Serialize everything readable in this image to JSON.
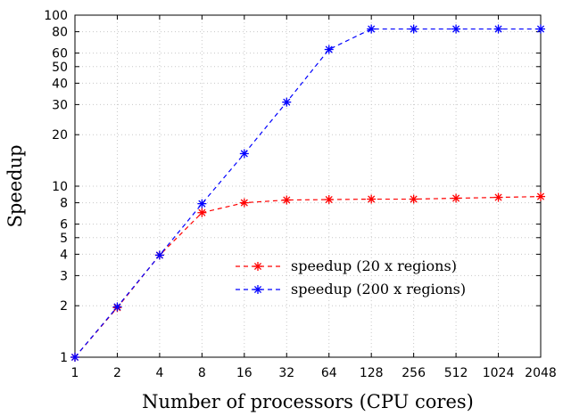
{
  "chart_data": {
    "type": "line",
    "xlabel": "Number of processors (CPU cores)",
    "ylabel": "Speedup",
    "x_scale": "log2",
    "y_scale": "log10",
    "xlim": [
      1,
      2048
    ],
    "ylim": [
      1,
      100
    ],
    "x_ticks": [
      1,
      2,
      4,
      8,
      16,
      32,
      64,
      128,
      256,
      512,
      1024,
      2048
    ],
    "y_ticks": [
      1,
      2,
      3,
      4,
      5,
      6,
      8,
      10,
      20,
      30,
      40,
      50,
      60,
      80,
      100
    ],
    "grid": true,
    "legend_position": "center-right",
    "series": [
      {
        "name": "speedup (20 x regions)",
        "color": "#ff0000",
        "marker": "asterisk",
        "line_style": "dashed",
        "x": [
          1,
          2,
          4,
          8,
          16,
          32,
          64,
          128,
          256,
          512,
          1024,
          2048
        ],
        "y": [
          1,
          1.95,
          3.95,
          7.0,
          8.0,
          8.3,
          8.35,
          8.4,
          8.4,
          8.5,
          8.6,
          8.7
        ]
      },
      {
        "name": "speedup (200 x regions)",
        "color": "#0000ff",
        "marker": "asterisk",
        "line_style": "dashed",
        "x": [
          1,
          2,
          4,
          8,
          16,
          32,
          64,
          128,
          256,
          512,
          1024,
          2048
        ],
        "y": [
          1,
          1.97,
          3.95,
          7.9,
          15.5,
          31,
          63,
          83,
          83,
          83,
          83,
          83
        ]
      }
    ]
  }
}
